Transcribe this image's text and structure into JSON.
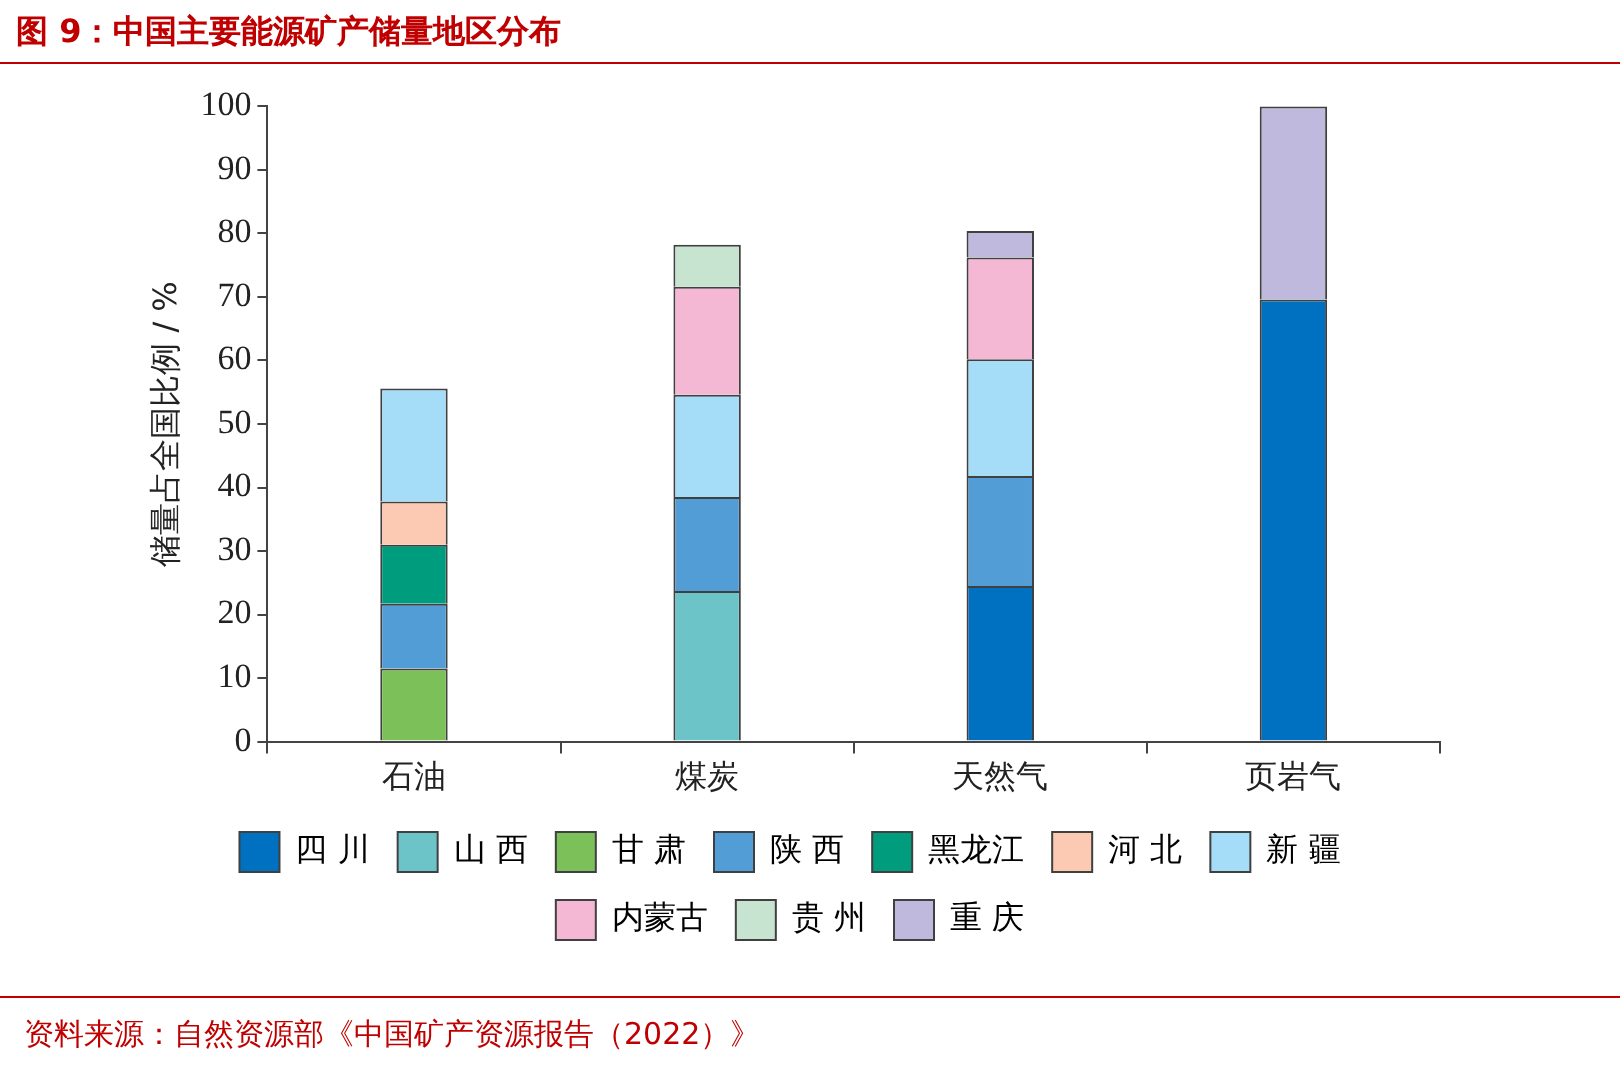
{
  "chart_data": {
    "type": "bar",
    "title": "图 9：中国主要能源矿产储量地区分布",
    "ylabel": "储量占全国比例 / %",
    "categories": [
      "石油",
      "煤炭",
      "天然气",
      "页岩气"
    ],
    "stacked": true,
    "ylim": [
      0,
      100
    ],
    "yticks": [
      0,
      10,
      20,
      30,
      40,
      50,
      60,
      70,
      80,
      90,
      100
    ],
    "grid": false,
    "legend": "bottom",
    "series": [
      {
        "name": "四 川",
        "color": "#0070c0",
        "values": [
          null,
          null,
          24.5,
          69.6
        ]
      },
      {
        "name": "山 西",
        "color": "#6cc4c8",
        "values": [
          null,
          23.7,
          null,
          null
        ]
      },
      {
        "name": "甘 肃",
        "color": "#7cc05a",
        "values": [
          11.5,
          null,
          null,
          null
        ]
      },
      {
        "name": "陕 西",
        "color": "#529dd5",
        "values": [
          10.2,
          14.8,
          17.3,
          null
        ]
      },
      {
        "name": "黑龙江",
        "color": "#009c7e",
        "values": [
          9.3,
          null,
          null,
          null
        ]
      },
      {
        "name": "河 北",
        "color": "#fccab2",
        "values": [
          6.8,
          null,
          null,
          null
        ]
      },
      {
        "name": "新 疆",
        "color": "#a5dcf7",
        "values": [
          17.8,
          16.1,
          18.4,
          null
        ]
      },
      {
        "name": "内蒙古",
        "color": "#f4b8d4",
        "values": [
          null,
          17.0,
          16.0,
          null
        ]
      },
      {
        "name": "贵 州",
        "color": "#c7e4d0",
        "values": [
          null,
          6.6,
          null,
          null
        ]
      },
      {
        "name": "重 庆",
        "color": "#bfbadd",
        "values": [
          null,
          null,
          4.2,
          30.4
        ]
      }
    ],
    "annotations": [
      "资料来源：自然资源部《中国矿产资源报告（2022）》"
    ]
  }
}
